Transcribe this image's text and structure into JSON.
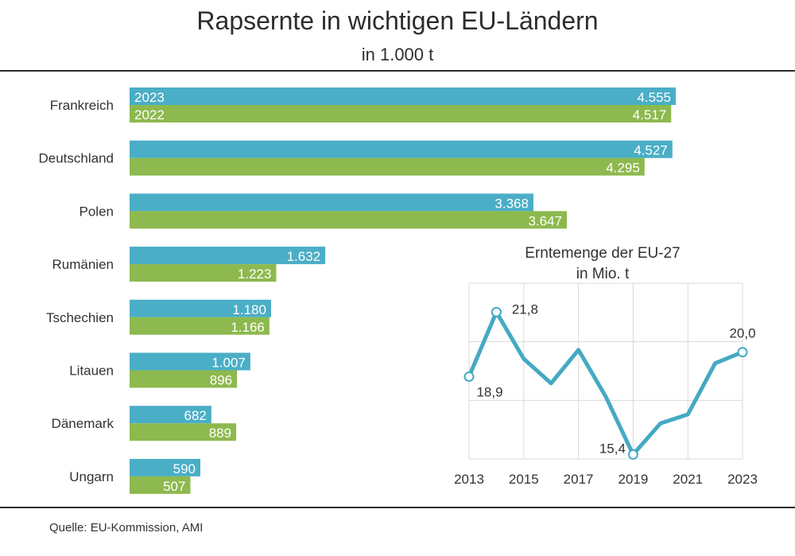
{
  "title": "Rapsernte in wichtigen EU-Ländern",
  "subtitle": "in 1.000 t",
  "source": "Quelle:  EU-Kommission, AMI",
  "colors": {
    "series_2023": "#4aaec6",
    "series_2022": "#8db94e",
    "line": "#45a9c3",
    "text": "#333333"
  },
  "chart_data": [
    {
      "type": "bar",
      "orientation": "horizontal",
      "categories": [
        "Frankreich",
        "Deutschland",
        "Polen",
        "Rumänien",
        "Tschechien",
        "Litauen",
        "Dänemark",
        "Ungarn"
      ],
      "series": [
        {
          "name": "2023",
          "values": [
            4555,
            4527,
            3368,
            1632,
            1180,
            1007,
            682,
            590
          ]
        },
        {
          "name": "2022",
          "values": [
            4517,
            4295,
            3647,
            1223,
            1166,
            896,
            889,
            507
          ]
        }
      ],
      "value_labels": {
        "2023": [
          "4.555",
          "4.527",
          "3.368",
          "1.632",
          "1.180",
          "1.007",
          "682",
          "590"
        ],
        "2022": [
          "4.517",
          "4.295",
          "3.647",
          "1.223",
          "1.166",
          "896",
          "889",
          "507"
        ]
      },
      "xlim": [
        0,
        4555
      ]
    },
    {
      "type": "line",
      "title": "Erntemenge der EU-27",
      "subtitle": "in Mio. t",
      "x": [
        2013,
        2014,
        2015,
        2016,
        2017,
        2018,
        2019,
        2020,
        2021,
        2022,
        2023
      ],
      "y": [
        18.9,
        21.8,
        19.7,
        18.6,
        20.1,
        18.0,
        15.4,
        16.8,
        17.2,
        19.5,
        20.0
      ],
      "x_tick_labels": [
        "2013",
        "2015",
        "2017",
        "2019",
        "2021",
        "2023"
      ],
      "ylim": [
        15.2,
        23.1
      ],
      "grid": true,
      "point_labels": [
        {
          "index": 0,
          "text": "18,9"
        },
        {
          "index": 1,
          "text": "21,8"
        },
        {
          "index": 6,
          "text": "15,4"
        },
        {
          "index": 10,
          "text": "20,0"
        }
      ]
    }
  ]
}
